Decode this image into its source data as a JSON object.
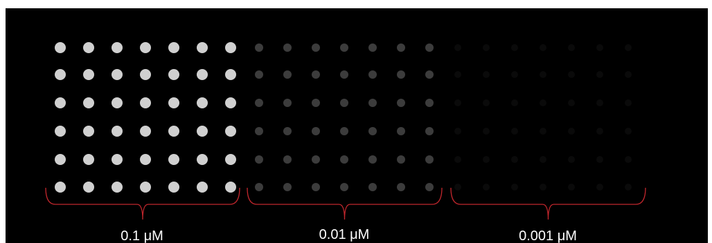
{
  "labels": [
    "0.1 μM",
    "0.01 μM",
    "0.001 μM"
  ]
}
